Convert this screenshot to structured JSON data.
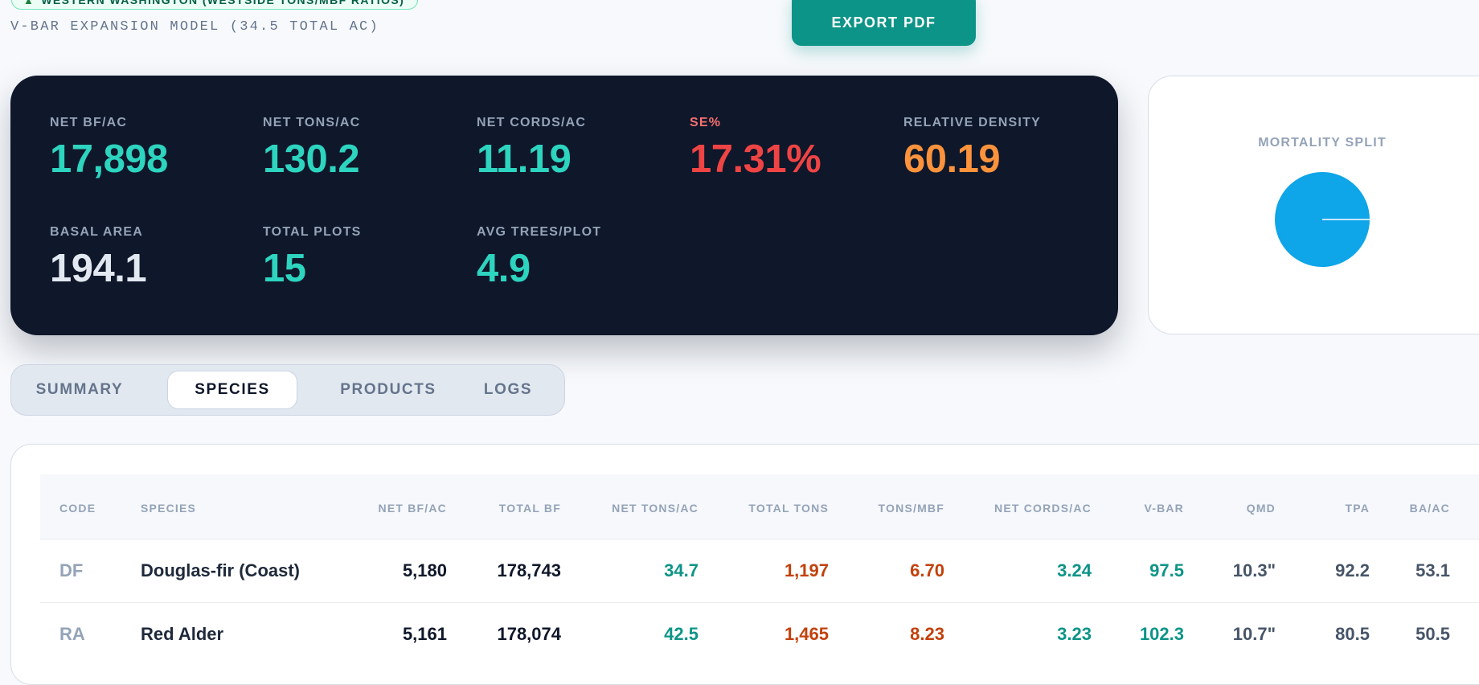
{
  "header": {
    "region_badge": "WESTERN WASHINGTON (WESTSIDE TONS/MBF RATIOS)",
    "model_title": "V-BAR EXPANSION MODEL (34.5 TOTAL AC)",
    "export_button": "EXPORT PDF"
  },
  "stats": [
    {
      "label": "NET BF/AC",
      "value": "17,898"
    },
    {
      "label": "NET TONS/AC",
      "value": "130.2"
    },
    {
      "label": "NET CORDS/AC",
      "value": "11.19"
    },
    {
      "label": "SE%",
      "value": "17.31%"
    },
    {
      "label": "RELATIVE DENSITY",
      "value": "60.19"
    },
    {
      "label": "BASAL AREA",
      "value": "194.1"
    },
    {
      "label": "TOTAL PLOTS",
      "value": "15"
    },
    {
      "label": "AVG TREES/PLOT",
      "value": "4.9"
    }
  ],
  "mortality": {
    "title": "MORTALITY SPLIT",
    "color": "#0ea5e9"
  },
  "tabs": [
    {
      "label": "SUMMARY",
      "active": false
    },
    {
      "label": "SPECIES",
      "active": true
    },
    {
      "label": "PRODUCTS",
      "active": false
    },
    {
      "label": "LOGS",
      "active": false
    }
  ],
  "table": {
    "columns": [
      "CODE",
      "SPECIES",
      "NET BF/AC",
      "TOTAL BF",
      "NET TONS/AC",
      "TOTAL TONS",
      "TONS/MBF",
      "NET CORDS/AC",
      "V-BAR",
      "QMD",
      "TPA",
      "BA/AC"
    ],
    "rows": [
      [
        "DF",
        "Douglas-fir (Coast)",
        "5,180",
        "178,743",
        "34.7",
        "1,197",
        "6.70",
        "3.24",
        "97.5",
        "10.3\"",
        "92.2",
        "53.1"
      ],
      [
        "RA",
        "Red Alder",
        "5,161",
        "178,074",
        "42.5",
        "1,465",
        "8.23",
        "3.23",
        "102.3",
        "10.7\"",
        "80.5",
        "50.5"
      ]
    ]
  }
}
